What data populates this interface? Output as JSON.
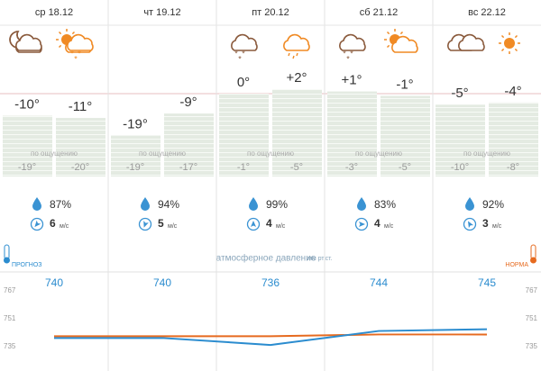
{
  "feels_label": "по ощущению",
  "wind_unit": "м/с",
  "pressure_title": "атмосферное давление",
  "pressure_unit": "мм рт.ст.",
  "forecast_label": "ПРОГНОЗ",
  "norm_label": "НОРМА",
  "pressure_ticks": [
    767,
    751,
    735
  ],
  "days": [
    {
      "date": "ср 18.12",
      "night": {
        "value": -10,
        "label": "-10°"
      },
      "day": {
        "value": -11,
        "label": "-11°"
      },
      "feels_night": "-19°",
      "feels_day": "-20°",
      "humidity": "87%",
      "wind": "6",
      "pressure": 740,
      "norm": 741
    },
    {
      "date": "чт 19.12",
      "night": {
        "value": -19,
        "label": "-19°"
      },
      "day": {
        "value": -9,
        "label": "-9°"
      },
      "feels_night": "-19°",
      "feels_day": "-17°",
      "humidity": "94%",
      "wind": "5",
      "pressure": 740,
      "norm": 741
    },
    {
      "date": "пт 20.12",
      "night": {
        "value": 0,
        "label": "0°"
      },
      "day": {
        "value": 2,
        "label": "+2°"
      },
      "feels_night": "-1°",
      "feels_day": "-5°",
      "humidity": "99%",
      "wind": "4",
      "pressure": 736,
      "norm": 741
    },
    {
      "date": "сб 21.12",
      "night": {
        "value": 1,
        "label": "+1°"
      },
      "day": {
        "value": -1,
        "label": "-1°"
      },
      "feels_night": "-3°",
      "feels_day": "-5°",
      "humidity": "83%",
      "wind": "4",
      "pressure": 744,
      "norm": 742
    },
    {
      "date": "вс 22.12",
      "night": {
        "value": -5,
        "label": "-5°"
      },
      "day": {
        "value": -4,
        "label": "-4°"
      },
      "feels_night": "-10°",
      "feels_day": "-8°",
      "humidity": "92%",
      "wind": "3",
      "pressure": 745,
      "norm": 742
    }
  ]
}
